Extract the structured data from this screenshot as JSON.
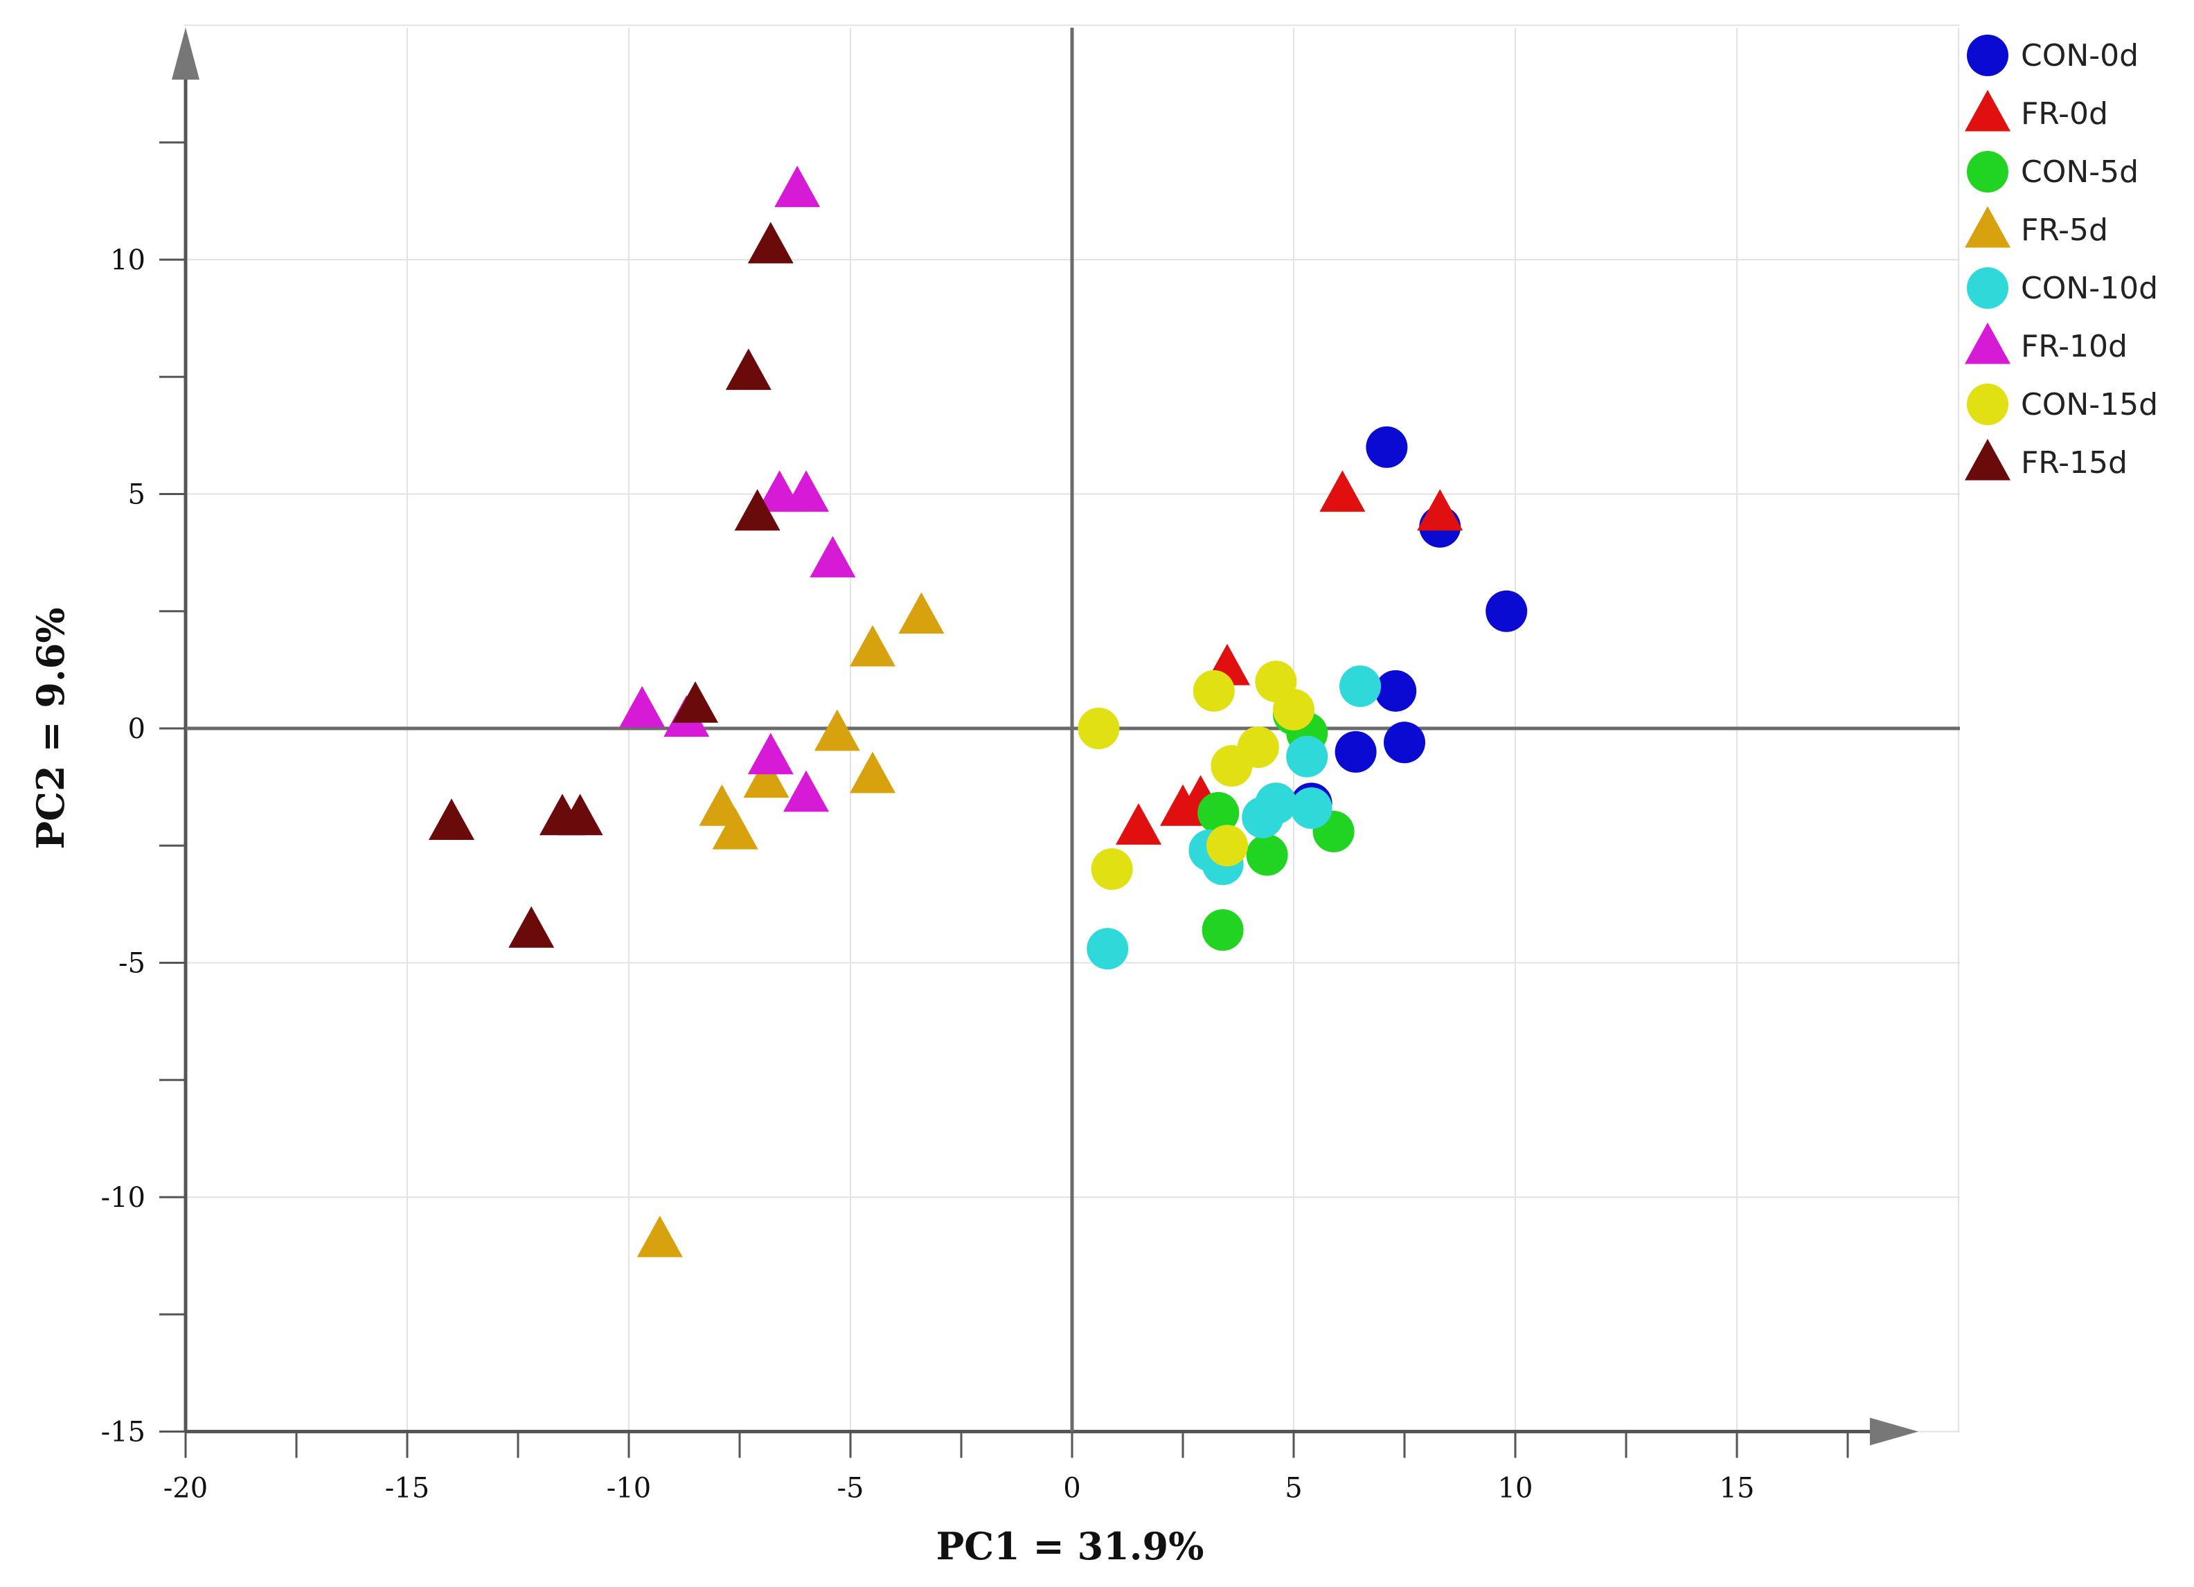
{
  "chart_data": {
    "type": "scatter",
    "title": "",
    "xlabel": "PC1 = 31.9%",
    "ylabel": "PC2 = 9.6%",
    "xlim": [
      -20,
      20
    ],
    "ylim": [
      -15,
      15
    ],
    "x_ticks": [
      -20,
      -15,
      -10,
      -5,
      0,
      5,
      10,
      15
    ],
    "y_ticks": [
      -15,
      -10,
      -5,
      0,
      5,
      10
    ],
    "grid": true,
    "legend_position": "top-right",
    "series": [
      {
        "name": "CON-0d",
        "marker": "circle",
        "color": "#0a0ad2",
        "points": [
          [
            7.1,
            6.0
          ],
          [
            8.3,
            4.3
          ],
          [
            9.8,
            2.5
          ],
          [
            7.3,
            0.8
          ],
          [
            7.5,
            -0.3
          ],
          [
            6.4,
            -0.5
          ],
          [
            5.4,
            -1.6
          ]
        ]
      },
      {
        "name": "FR-0d",
        "marker": "triangle",
        "color": "#e01010",
        "points": [
          [
            6.1,
            5.0
          ],
          [
            8.3,
            4.6
          ],
          [
            3.5,
            1.3
          ],
          [
            1.5,
            -2.1
          ],
          [
            2.5,
            -1.7
          ],
          [
            2.9,
            -1.5
          ]
        ]
      },
      {
        "name": "CON-5d",
        "marker": "circle",
        "color": "#22d422",
        "points": [
          [
            5.0,
            0.3
          ],
          [
            5.3,
            -0.1
          ],
          [
            3.3,
            -1.8
          ],
          [
            4.6,
            -1.6
          ],
          [
            5.9,
            -2.2
          ],
          [
            4.4,
            -2.7
          ],
          [
            3.4,
            -4.3
          ]
        ]
      },
      {
        "name": "FR-5d",
        "marker": "triangle",
        "color": "#d8a10e",
        "points": [
          [
            -3.4,
            2.4
          ],
          [
            -4.5,
            1.7
          ],
          [
            -5.3,
            -0.1
          ],
          [
            -4.5,
            -1.0
          ],
          [
            -6.9,
            -1.1
          ],
          [
            -7.9,
            -1.7
          ],
          [
            -7.6,
            -2.2
          ],
          [
            -9.3,
            -10.9
          ]
        ]
      },
      {
        "name": "CON-10d",
        "marker": "circle",
        "color": "#30d9d9",
        "points": [
          [
            6.5,
            0.9
          ],
          [
            5.3,
            -0.6
          ],
          [
            4.6,
            -1.6
          ],
          [
            5.4,
            -1.7
          ],
          [
            4.3,
            -1.9
          ],
          [
            3.1,
            -2.6
          ],
          [
            3.4,
            -2.9
          ],
          [
            0.8,
            -4.7
          ]
        ]
      },
      {
        "name": "FR-10d",
        "marker": "triangle",
        "color": "#d61ad6",
        "points": [
          [
            -6.2,
            11.5
          ],
          [
            -6.6,
            5.0
          ],
          [
            -6.0,
            5.0
          ],
          [
            -5.4,
            3.6
          ],
          [
            -9.7,
            0.4
          ],
          [
            -8.7,
            0.2
          ],
          [
            -6.8,
            -0.6
          ],
          [
            -6.0,
            -1.4
          ]
        ]
      },
      {
        "name": "CON-15d",
        "marker": "circle",
        "color": "#e0e012",
        "points": [
          [
            0.6,
            0.0
          ],
          [
            3.2,
            0.8
          ],
          [
            4.6,
            1.0
          ],
          [
            5.0,
            0.4
          ],
          [
            4.2,
            -0.4
          ],
          [
            3.6,
            -0.8
          ],
          [
            3.5,
            -2.5
          ],
          [
            0.9,
            -3.0
          ]
        ]
      },
      {
        "name": "FR-15d",
        "marker": "triangle",
        "color": "#6b0a0a",
        "points": [
          [
            -6.8,
            10.3
          ],
          [
            -7.3,
            7.6
          ],
          [
            -7.1,
            4.6
          ],
          [
            -8.5,
            0.5
          ],
          [
            -11.5,
            -1.9
          ],
          [
            -11.1,
            -1.9
          ],
          [
            -14.0,
            -2.0
          ],
          [
            -12.2,
            -4.3
          ]
        ]
      }
    ]
  }
}
